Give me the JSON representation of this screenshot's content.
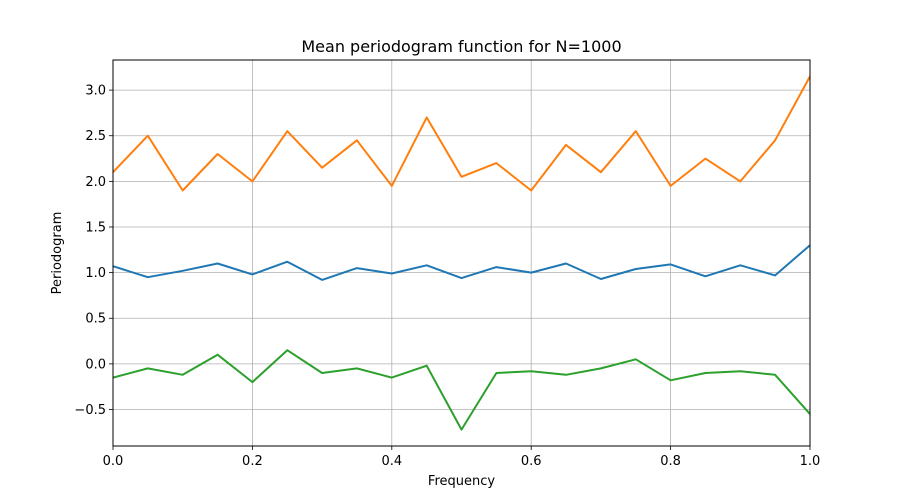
{
  "chart_data": {
    "type": "line",
    "title": "Mean periodogram function for N=1000",
    "xlabel": "Frequency",
    "ylabel": "Periodogram",
    "xlim": [
      0.0,
      1.0
    ],
    "ylim": [
      -0.9,
      3.33
    ],
    "grid": true,
    "x_ticks": [
      "0.0",
      "0.2",
      "0.4",
      "0.6",
      "0.8",
      "1.0"
    ],
    "y_ticks": [
      "−0.5",
      "0.0",
      "0.5",
      "1.0",
      "1.5",
      "2.0",
      "2.5",
      "3.0"
    ],
    "x_tick_values": [
      0.0,
      0.2,
      0.4,
      0.6,
      0.8,
      1.0
    ],
    "y_tick_values": [
      -0.5,
      0.0,
      0.5,
      1.0,
      1.5,
      2.0,
      2.5,
      3.0
    ],
    "series": [
      {
        "color": "#1f77b4",
        "x": [
          0.0,
          0.05,
          0.1,
          0.15,
          0.2,
          0.25,
          0.3,
          0.35,
          0.4,
          0.45,
          0.5,
          0.55,
          0.6,
          0.65,
          0.7,
          0.75,
          0.8,
          0.85,
          0.9,
          0.95,
          1.0
        ],
        "values": [
          1.07,
          0.95,
          1.02,
          1.1,
          0.98,
          1.12,
          0.92,
          1.05,
          0.99,
          1.08,
          0.94,
          1.06,
          1.0,
          1.1,
          0.93,
          1.04,
          1.09,
          0.96,
          1.08,
          0.97,
          1.3
        ]
      },
      {
        "color": "#ff7f0e",
        "x": [
          0.0,
          0.05,
          0.1,
          0.15,
          0.2,
          0.25,
          0.3,
          0.35,
          0.4,
          0.45,
          0.5,
          0.55,
          0.6,
          0.65,
          0.7,
          0.75,
          0.8,
          0.85,
          0.9,
          0.95,
          1.0
        ],
        "values": [
          2.1,
          2.5,
          1.9,
          2.3,
          2.0,
          2.55,
          2.15,
          2.45,
          1.95,
          2.7,
          2.05,
          2.2,
          1.9,
          2.4,
          2.1,
          2.55,
          1.95,
          2.25,
          2.0,
          2.45,
          3.15
        ]
      },
      {
        "color": "#2ca02c",
        "x": [
          0.0,
          0.05,
          0.1,
          0.15,
          0.2,
          0.25,
          0.3,
          0.35,
          0.4,
          0.45,
          0.5,
          0.55,
          0.6,
          0.65,
          0.7,
          0.75,
          0.8,
          0.85,
          0.9,
          0.95,
          1.0
        ],
        "values": [
          -0.15,
          -0.05,
          -0.12,
          0.1,
          -0.2,
          0.15,
          -0.1,
          -0.05,
          -0.15,
          -0.02,
          -0.72,
          -0.1,
          -0.08,
          -0.12,
          -0.05,
          0.05,
          -0.18,
          -0.1,
          -0.08,
          -0.12,
          -0.55
        ]
      }
    ]
  }
}
